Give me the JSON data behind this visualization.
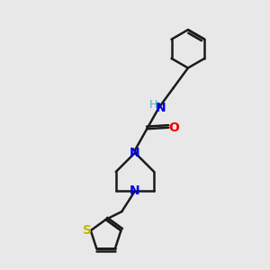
{
  "bg_color": "#e8e8e8",
  "bond_color": "#1a1a1a",
  "N_color": "#0000ee",
  "O_color": "#ee0000",
  "S_color": "#bbbb00",
  "H_color": "#4ab5b5",
  "line_width": 1.8,
  "font_size": 10,
  "fig_size": [
    3.0,
    3.0
  ],
  "dpi": 100,
  "xlim": [
    0,
    10
  ],
  "ylim": [
    0,
    10
  ]
}
